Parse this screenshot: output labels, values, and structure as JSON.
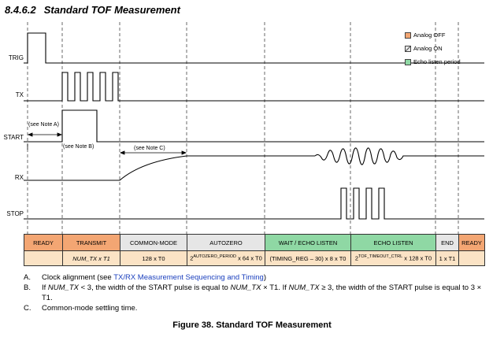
{
  "section": {
    "number": "8.4.6.2",
    "title": "Standard TOF Measurement"
  },
  "signals": [
    "TRIG",
    "TX",
    "START",
    "RX",
    "STOP"
  ],
  "notes_in_diagram": {
    "a": "(see Note A)",
    "b": "(see Note B)",
    "c": "(see Note C)"
  },
  "legend": [
    {
      "label": "Analog OFF",
      "color": "#f3a673",
      "icon": "orange-square-icon"
    },
    {
      "label": "Analog ON",
      "color": "#e6e6e6",
      "icon": "gray-slashed-square-icon"
    },
    {
      "label": "Echo listen period",
      "color": "#8fd8a4",
      "icon": "green-square-icon"
    }
  ],
  "phases": [
    {
      "name": "READY",
      "value": "",
      "state": "off"
    },
    {
      "name": "TRANSMIT",
      "value": "NUM_TX x T1",
      "state": "off"
    },
    {
      "name": "COMMON-MODE",
      "value": "128 x T0",
      "state": "on"
    },
    {
      "name": "AUTOZERO",
      "value_pre": "2",
      "value_sup": "AUTOZERO_PERIOD",
      "value_post": " x 64 x T0",
      "state": "on"
    },
    {
      "name": "WAIT / ECHO LISTEN",
      "value": "(TIMING_REG – 30) x 8 x T0",
      "state": "echo"
    },
    {
      "name": "ECHO LISTEN",
      "value_pre": "2",
      "value_sup": "TOF_TIMEOUT_CTRL",
      "value_post": " x 128 x T0",
      "state": "echo"
    },
    {
      "name": "END",
      "value": "1 x T1",
      "state": "on"
    },
    {
      "name": "READY",
      "value": "",
      "state": "off"
    }
  ],
  "footnotes": [
    {
      "label": "A.",
      "text_pre": "Clock alignment (see ",
      "link": "TX/RX Measurement Sequencing and Timing",
      "text_post": ")"
    },
    {
      "label": "B.",
      "t1": "If ",
      "v1": "NUM_TX",
      "t2": " < 3, the width of the START pulse is equal to ",
      "v2": "NUM_TX",
      "t3": " × T1. If ",
      "v3": "NUM_TX",
      "t4": " ≥ 3, the width of the START pulse is equal to 3 × T1."
    },
    {
      "label": "C.",
      "text": "Common-mode settling time."
    }
  ],
  "figure_caption": "Figure 38.  Standard TOF Measurement"
}
